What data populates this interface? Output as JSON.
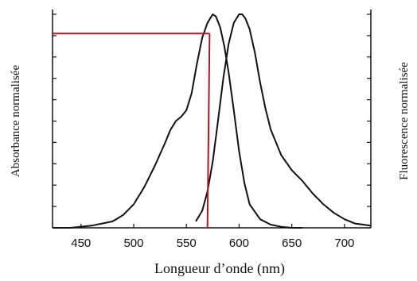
{
  "chart_data": {
    "type": "line",
    "title": "",
    "xlabel": "Longueur d’onde (nm)",
    "ylabel_left": "Absorbance normalisée",
    "ylabel_right": "Fluorescence normalisée",
    "xlim": [
      423,
      725
    ],
    "ylim": [
      0,
      1.0
    ],
    "x_ticks": [
      450,
      500,
      550,
      600,
      650,
      700
    ],
    "x_tick_labels": [
      "450",
      "500",
      "550",
      "600",
      "650",
      "700"
    ],
    "y_tick_count": 11,
    "grid": false,
    "legend": "none",
    "series": [
      {
        "role": "absorbance",
        "x": [
          423,
          440,
          460,
          480,
          490,
          500,
          510,
          520,
          530,
          535,
          540,
          545,
          550,
          555,
          560,
          565,
          570,
          575,
          578,
          582,
          586,
          590,
          595,
          600,
          605,
          610,
          620,
          630,
          640,
          650,
          660
        ],
        "y": [
          0.0,
          0.0,
          0.01,
          0.03,
          0.06,
          0.11,
          0.19,
          0.29,
          0.4,
          0.46,
          0.5,
          0.52,
          0.55,
          0.63,
          0.77,
          0.89,
          0.96,
          1.0,
          0.99,
          0.94,
          0.85,
          0.73,
          0.55,
          0.36,
          0.21,
          0.11,
          0.04,
          0.015,
          0.005,
          0.0,
          0.0
        ]
      },
      {
        "role": "fluorescence",
        "x": [
          559,
          565,
          570,
          575,
          580,
          585,
          590,
          595,
          600,
          603,
          606,
          610,
          615,
          620,
          625,
          630,
          640,
          650,
          660,
          670,
          680,
          690,
          700,
          710,
          725
        ],
        "y": [
          0.03,
          0.08,
          0.17,
          0.31,
          0.5,
          0.7,
          0.86,
          0.96,
          1.0,
          1.0,
          0.98,
          0.93,
          0.82,
          0.68,
          0.56,
          0.46,
          0.34,
          0.27,
          0.22,
          0.16,
          0.11,
          0.07,
          0.04,
          0.02,
          0.01
        ]
      }
    ],
    "annotation": {
      "color": "#b0191e",
      "x_from": 423,
      "x_to": 572,
      "y_level": 0.91,
      "x_drop": 570,
      "y_drop_end": 0.0
    },
    "line_color": "#111111"
  }
}
